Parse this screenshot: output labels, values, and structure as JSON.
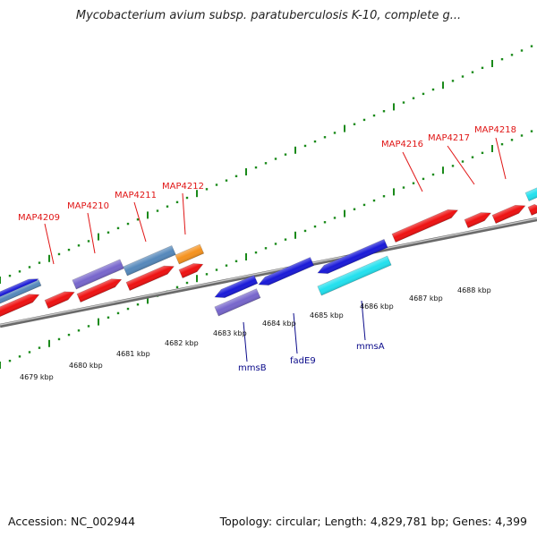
{
  "title": "Mycobacterium avium subsp. paratuberculosis K-10, complete g...",
  "footer": {
    "accession": "Accession: NC_002944",
    "topology": "Topology: circular; Length: 4,829,781 bp; Genes: 4,399"
  },
  "colors": {
    "forward_gene": "#ee1111",
    "reverse_gene": "#1a1ad8",
    "purple_gene": "#7766cc",
    "steelblue_gene": "#5588bb",
    "orange_gene": "#f5921e",
    "cyan_gene": "#22e0ee",
    "backbone": "#8a8a8a",
    "ticks": "#1a8a1a",
    "up_label": "#e01515",
    "down_label": "#0a0a8a"
  },
  "upper_labels": [
    "MAP4209",
    "MAP4210",
    "MAP4211",
    "MAP4212",
    "MAP4216",
    "MAP4217",
    "MAP4218"
  ],
  "lower_labels": [
    "mmsB",
    "fadE9",
    "mmsA"
  ],
  "kbp_labels": [
    "4679 kbp",
    "4680 kbp",
    "4681 kbp",
    "4682 kbp",
    "4683 kbp",
    "4684 kbp",
    "4685 kbp",
    "4686 kbp",
    "4687 kbp",
    "4688 kbp"
  ]
}
